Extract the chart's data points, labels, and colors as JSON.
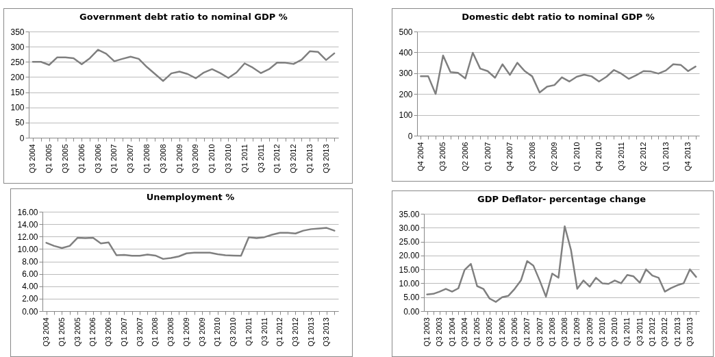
{
  "chart_data": [
    {
      "type": "line",
      "title": "Government debt ratio to nominal GDP %",
      "color": "#7f7f7f",
      "grid": "y",
      "ylim": [
        0,
        350
      ],
      "yticks": [
        0,
        50,
        100,
        150,
        200,
        250,
        300,
        350
      ],
      "categories": [
        "Q3 2004",
        null,
        "Q1 2005",
        null,
        "Q3 2005",
        null,
        "Q1 2006",
        null,
        "Q3 2006",
        null,
        "Q1 2007",
        null,
        "Q3 2007",
        null,
        "Q1 2008",
        null,
        "Q3 2008",
        null,
        "Q1 2009",
        null,
        "Q3 2009",
        null,
        "Q1 2010",
        null,
        "Q3 2010",
        null,
        "Q1 2011",
        null,
        "Q3 2011",
        null,
        "Q1 2012",
        null,
        "Q3 2012",
        null,
        "Q1 2013",
        null,
        "Q3 2013",
        null
      ],
      "values": [
        250,
        250,
        240,
        265,
        265,
        262,
        242,
        262,
        290,
        277,
        252,
        260,
        267,
        260,
        233,
        210,
        187,
        212,
        218,
        210,
        196,
        215,
        226,
        213,
        197,
        215,
        245,
        231,
        213,
        226,
        248,
        247,
        243,
        257,
        285,
        283,
        256,
        278
      ]
    },
    {
      "type": "line",
      "title": "Domestic debt ratio to nominal GDP %",
      "color": "#7f7f7f",
      "grid": "y",
      "ylim": [
        0,
        500
      ],
      "yticks": [
        0,
        100,
        200,
        300,
        400,
        500
      ],
      "categories": [
        "Q4 2004",
        null,
        null,
        "Q3 2005",
        null,
        null,
        "Q2 2006",
        null,
        null,
        "Q1 2007",
        null,
        null,
        "Q4 2007",
        null,
        null,
        "Q3 2008",
        null,
        null,
        "Q2 2009",
        null,
        null,
        "Q1 2010",
        null,
        null,
        "Q4 2010",
        null,
        null,
        "Q3 2011",
        null,
        null,
        "Q2 2012",
        null,
        null,
        "Q1 2013",
        null,
        null,
        "Q4 2013",
        null
      ],
      "values": [
        285,
        285,
        200,
        385,
        305,
        302,
        275,
        398,
        322,
        310,
        278,
        343,
        292,
        350,
        310,
        285,
        207,
        235,
        243,
        280,
        260,
        283,
        293,
        285,
        260,
        283,
        315,
        298,
        273,
        290,
        310,
        308,
        298,
        313,
        343,
        340,
        310,
        332
      ]
    },
    {
      "type": "line",
      "title": "Unemployment %",
      "color": "#7f7f7f",
      "grid": "y",
      "ylim": [
        0,
        16
      ],
      "yticks": [
        {
          "value": 0,
          "label": "0.00"
        },
        {
          "value": 2,
          "label": "2.00"
        },
        {
          "value": 4,
          "label": "4.00"
        },
        {
          "value": 6,
          "label": "6.00"
        },
        {
          "value": 8,
          "label": "8.00"
        },
        {
          "value": 10,
          "label": "10.00"
        },
        {
          "value": 12,
          "label": "12.00"
        },
        {
          "value": 14,
          "label": "14.00"
        },
        {
          "value": 16,
          "label": "16.00"
        }
      ],
      "categories": [
        "Q3 2004",
        null,
        "Q1 2005",
        null,
        "Q3 2005",
        null,
        "Q1 2006",
        null,
        "Q3 2006",
        null,
        "Q1 2007",
        null,
        "Q3 2007",
        null,
        "Q1 2008",
        null,
        "Q3 2008",
        null,
        "Q1 2009",
        null,
        "Q3 2009",
        null,
        "Q1 2010",
        null,
        "Q3 2010",
        null,
        "Q1 2011",
        null,
        "Q3 2011",
        null,
        "Q1 2012",
        null,
        "Q3 2012",
        null,
        "Q1 2013",
        null,
        "Q3 2013",
        null
      ],
      "values": [
        11.0,
        10.5,
        10.15,
        10.5,
        11.8,
        11.75,
        11.8,
        10.9,
        11.05,
        9.0,
        9.05,
        8.9,
        8.9,
        9.1,
        8.95,
        8.4,
        8.55,
        8.8,
        9.3,
        9.4,
        9.4,
        9.4,
        9.15,
        9.0,
        8.95,
        8.9,
        11.9,
        11.75,
        11.9,
        12.3,
        12.6,
        12.6,
        12.5,
        12.95,
        13.2,
        13.3,
        13.4,
        12.95
      ]
    },
    {
      "type": "line",
      "title": "GDP Deflator- percentage change",
      "color": "#7f7f7f",
      "grid": "y",
      "ylim": [
        0,
        35
      ],
      "yticks": [
        {
          "value": 0,
          "label": "0.00"
        },
        {
          "value": 5,
          "label": "5.00"
        },
        {
          "value": 10,
          "label": "10.00"
        },
        {
          "value": 15,
          "label": "15.00"
        },
        {
          "value": 20,
          "label": "20.00"
        },
        {
          "value": 25,
          "label": "25.00"
        },
        {
          "value": 30,
          "label": "30.00"
        },
        {
          "value": 35,
          "label": "35.00"
        }
      ],
      "categories": [
        "Q1 2003",
        null,
        "Q3 2003",
        null,
        "Q1 2004",
        null,
        "Q3 2004",
        null,
        "Q1 2005",
        null,
        "Q3 2005",
        null,
        "Q1 2006",
        null,
        "Q3 2006",
        null,
        "Q1 2007",
        null,
        "Q3 2007",
        null,
        "Q1 2008",
        null,
        "Q3 2008",
        null,
        "Q1 2009",
        null,
        "Q3 2009",
        null,
        "Q1 2010",
        null,
        "Q3 2010",
        null,
        "Q1 2011",
        null,
        "Q3 2011",
        null,
        "Q1 2012",
        null,
        "Q3 2012",
        null,
        "Q1 2013",
        null,
        "Q3 2013",
        null
      ],
      "values": [
        6.0,
        6.2,
        7.0,
        8.0,
        7.0,
        8.2,
        14.8,
        17.0,
        9.0,
        8.0,
        4.5,
        3.3,
        5.0,
        5.5,
        8.0,
        11.0,
        18.0,
        16.3,
        11.0,
        5.2,
        13.5,
        12.0,
        30.5,
        22.0,
        8.0,
        11.0,
        8.8,
        12.0,
        10.0,
        9.8,
        11.0,
        10.0,
        13.0,
        12.5,
        10.2,
        15.0,
        12.8,
        12.0,
        7.0,
        8.3,
        9.3,
        10.0,
        15.0,
        12.3
      ]
    }
  ]
}
